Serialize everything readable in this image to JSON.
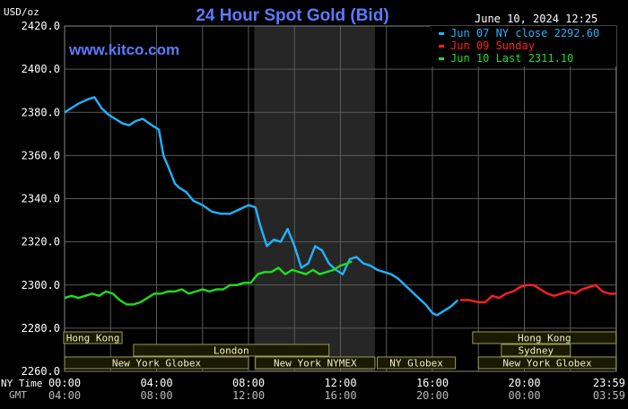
{
  "header": {
    "units": "USD/oz",
    "title": "24 Hour Spot Gold (Bid)",
    "timestamp": "June 10, 2024 12:25",
    "watermark": "www.kitco.com"
  },
  "colors": {
    "background": "#000000",
    "grid": "#5a5a5a",
    "axis_text": "#ffffff",
    "title": "#5b7bff",
    "watermark": "#5b7bff",
    "shade": "#262626",
    "session_box_fill": "#1a1a00",
    "session_box_border": "#9b9b55",
    "series_jun07": "#1fb4ff",
    "series_jun09": "#ff2020",
    "series_jun10": "#20dd20"
  },
  "legend": [
    {
      "label": "Jun 07 NY close 2292.60",
      "color": "#1fb4ff"
    },
    {
      "label": "Jun 09 Sunday",
      "color": "#ff2020"
    },
    {
      "label": "Jun 10 Last 2311.10",
      "color": "#20dd20"
    }
  ],
  "axis": {
    "ny_time_label": "NY Time",
    "gmt_label": "GMT",
    "ny_ticks": [
      "00:00",
      "04:00",
      "08:00",
      "12:00",
      "16:00",
      "20:00",
      "23:59"
    ],
    "gmt_ticks": [
      "04:00",
      "08:00",
      "12:00",
      "16:00",
      "20:00",
      "00:00",
      "03:59"
    ],
    "y_ticks": [
      "2420.0",
      "2400.0",
      "2380.0",
      "2360.0",
      "2340.0",
      "2320.0",
      "2300.0",
      "2280.0",
      "2260.0"
    ]
  },
  "sessions": [
    {
      "label": "Hong Kong",
      "start": -1.0,
      "end": 2.5
    },
    {
      "label": "Hong Kong",
      "start": 17.75,
      "end": 23.99
    },
    {
      "label": "London",
      "start": 3.0,
      "end": 11.5
    },
    {
      "label": "Sydney",
      "start": 19.0,
      "end": 22.0
    },
    {
      "label": "New York Globex",
      "start": 0.0,
      "end": 8.0
    },
    {
      "label": "New York NYMEX",
      "start": 8.3,
      "end": 13.5
    },
    {
      "label": "NY Globex",
      "start": 13.6,
      "end": 17.0
    },
    {
      "label": "New York Globex",
      "start": 18.0,
      "end": 23.99
    }
  ],
  "chart_data": {
    "type": "line",
    "title": "24 Hour Spot Gold (Bid)",
    "ylabel": "USD/oz",
    "xlabel": "NY Time",
    "xlim": [
      0,
      24
    ],
    "ylim": [
      2260,
      2420
    ],
    "grid": true,
    "legend_position": "top-right",
    "shaded_region": [
      8.25,
      13.5
    ],
    "series": [
      {
        "name": "Jun 07 NY close 2292.60",
        "color": "#1fb4ff",
        "x": [
          0,
          0.3,
          0.6,
          1.0,
          1.3,
          1.6,
          1.9,
          2.2,
          2.5,
          2.8,
          3.1,
          3.4,
          3.8,
          4.1,
          4.3,
          4.5,
          4.8,
          5.0,
          5.3,
          5.6,
          6.0,
          6.4,
          6.8,
          7.2,
          7.6,
          8.0,
          8.3,
          8.5,
          8.8,
          9.1,
          9.4,
          9.7,
          10.0,
          10.3,
          10.6,
          10.9,
          11.2,
          11.5,
          11.8,
          12.1,
          12.4,
          12.7,
          13.0,
          13.3,
          13.6,
          13.9,
          14.2,
          14.5,
          14.8,
          15.1,
          15.4,
          15.7,
          16.0,
          16.2,
          16.5,
          16.8,
          17.1
        ],
        "y": [
          2380,
          2382,
          2384,
          2386,
          2387,
          2382,
          2379,
          2377,
          2375,
          2374,
          2376,
          2377,
          2374,
          2372,
          2360,
          2355,
          2347,
          2345,
          2343,
          2339,
          2337,
          2334,
          2333,
          2333,
          2335,
          2337,
          2336,
          2328,
          2318,
          2321,
          2320,
          2326,
          2318,
          2308,
          2310,
          2318,
          2316,
          2310,
          2307,
          2305,
          2312,
          2313,
          2310,
          2309,
          2307,
          2306,
          2305,
          2303,
          2300,
          2297,
          2294,
          2291,
          2287,
          2286,
          2288,
          2290,
          2293
        ]
      },
      {
        "name": "Jun 09 Sunday",
        "color": "#ff2020",
        "x": [
          17.2,
          17.6,
          18.0,
          18.3,
          18.6,
          18.9,
          19.2,
          19.5,
          19.8,
          20.1,
          20.4,
          20.7,
          21.0,
          21.3,
          21.6,
          21.9,
          22.2,
          22.5,
          22.8,
          23.1,
          23.4,
          23.7,
          23.99
        ],
        "y": [
          2293,
          2293,
          2292,
          2292,
          2295,
          2294,
          2296,
          2297,
          2299,
          2300,
          2300,
          2298,
          2296,
          2295,
          2296,
          2297,
          2296,
          2298,
          2299,
          2300,
          2297,
          2296,
          2296
        ]
      },
      {
        "name": "Jun 10 Last 2311.10",
        "color": "#20dd20",
        "x": [
          0,
          0.3,
          0.6,
          0.9,
          1.2,
          1.5,
          1.8,
          2.1,
          2.4,
          2.7,
          3.0,
          3.3,
          3.6,
          3.9,
          4.2,
          4.5,
          4.8,
          5.1,
          5.4,
          5.7,
          6.0,
          6.3,
          6.6,
          6.9,
          7.2,
          7.5,
          7.8,
          8.1,
          8.4,
          8.7,
          9.0,
          9.3,
          9.6,
          9.9,
          10.2,
          10.5,
          10.8,
          11.1,
          11.4,
          11.7,
          12.0,
          12.3,
          12.5
        ],
        "y": [
          2294,
          2295,
          2294,
          2295,
          2296,
          2295,
          2297,
          2296,
          2293,
          2291,
          2291,
          2292,
          2294,
          2296,
          2296,
          2297,
          2297,
          2298,
          2296,
          2297,
          2298,
          2297,
          2298,
          2298,
          2300,
          2300,
          2301,
          2301,
          2305,
          2306,
          2306,
          2308,
          2305,
          2307,
          2306,
          2305,
          2307,
          2305,
          2306,
          2307,
          2309,
          2310,
          2311
        ]
      }
    ]
  }
}
